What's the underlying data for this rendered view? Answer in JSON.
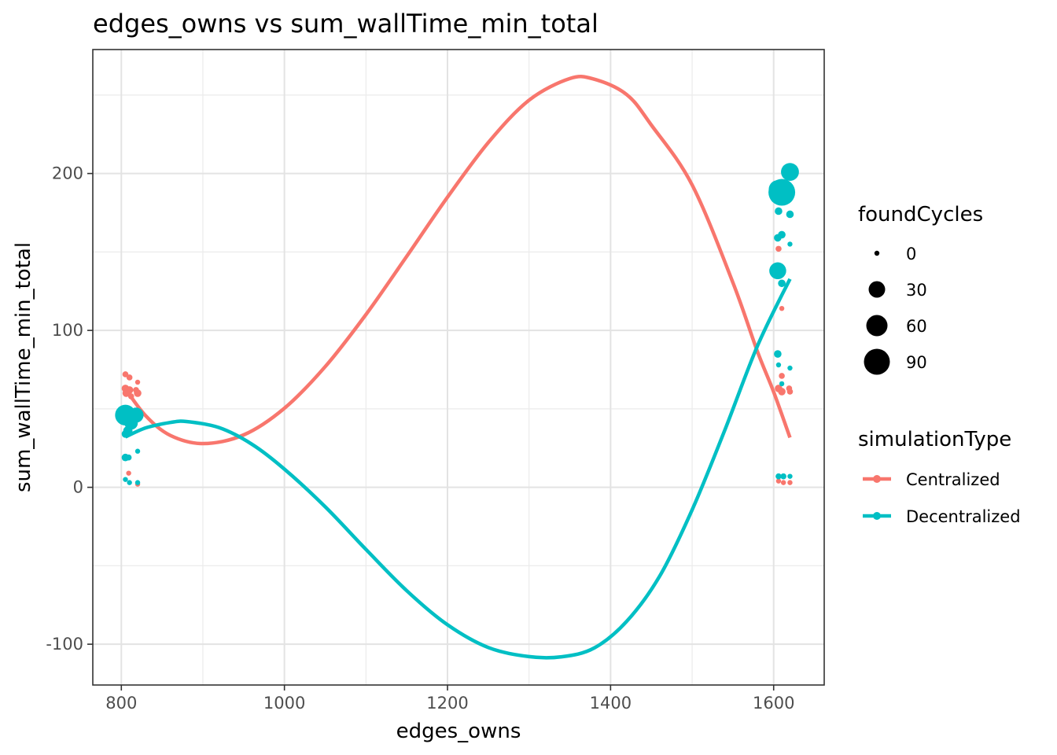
{
  "chart_data": {
    "type": "scatter",
    "title": "edges_owns  vs  sum_wallTime_min_total",
    "xlabel": "edges_owns",
    "ylabel": "sum_wallTime_min_total",
    "xlim": [
      765,
      1662
    ],
    "ylim": [
      -126,
      279
    ],
    "x_ticks": [
      800,
      1000,
      1200,
      1400,
      1600
    ],
    "y_ticks": [
      -100,
      0,
      100,
      200
    ],
    "x_minor": [
      900,
      1100,
      1300,
      1500
    ],
    "y_minor": [
      -50,
      50,
      150,
      250
    ],
    "grid": true,
    "legend_position": "right",
    "size_legend": {
      "title": "foundCycles",
      "entries": [
        {
          "label": "0",
          "value": 0
        },
        {
          "label": "30",
          "value": 30
        },
        {
          "label": "60",
          "value": 60
        },
        {
          "label": "90",
          "value": 90
        }
      ]
    },
    "series": [
      {
        "name": "Centralized",
        "color": "#F8766D",
        "points": [
          {
            "x": 805,
            "y": 72,
            "size": 5
          },
          {
            "x": 810,
            "y": 70,
            "size": 5
          },
          {
            "x": 805,
            "y": 63,
            "size": 8
          },
          {
            "x": 810,
            "y": 62,
            "size": 8
          },
          {
            "x": 806,
            "y": 60,
            "size": 8
          },
          {
            "x": 812,
            "y": 58,
            "size": 5
          },
          {
            "x": 820,
            "y": 67,
            "size": 3
          },
          {
            "x": 818,
            "y": 62,
            "size": 5
          },
          {
            "x": 820,
            "y": 60,
            "size": 8
          },
          {
            "x": 809,
            "y": 9,
            "size": 2
          },
          {
            "x": 820,
            "y": 2,
            "size": 3
          },
          {
            "x": 1606,
            "y": 152,
            "size": 5
          },
          {
            "x": 1610,
            "y": 114,
            "size": 3
          },
          {
            "x": 1610,
            "y": 71,
            "size": 5
          },
          {
            "x": 1606,
            "y": 63,
            "size": 8
          },
          {
            "x": 1610,
            "y": 61,
            "size": 8
          },
          {
            "x": 1619,
            "y": 63,
            "size": 5
          },
          {
            "x": 1620,
            "y": 61,
            "size": 5
          },
          {
            "x": 1606,
            "y": 4,
            "size": 3
          },
          {
            "x": 1612,
            "y": 3,
            "size": 3
          },
          {
            "x": 1620,
            "y": 3,
            "size": 3
          }
        ],
        "trend": [
          {
            "x": 805,
            "y": 62.7
          },
          {
            "x": 830,
            "y": 45.5
          },
          {
            "x": 860,
            "y": 33.1
          },
          {
            "x": 900,
            "y": 27.9
          },
          {
            "x": 950,
            "y": 33.4
          },
          {
            "x": 1000,
            "y": 50.4
          },
          {
            "x": 1050,
            "y": 76.9
          },
          {
            "x": 1100,
            "y": 110.1
          },
          {
            "x": 1150,
            "y": 147.2
          },
          {
            "x": 1200,
            "y": 184.9
          },
          {
            "x": 1250,
            "y": 219.7
          },
          {
            "x": 1300,
            "y": 246.7
          },
          {
            "x": 1350,
            "y": 260.5
          },
          {
            "x": 1380,
            "y": 260.1
          },
          {
            "x": 1420,
            "y": 250.2
          },
          {
            "x": 1450,
            "y": 230.9
          },
          {
            "x": 1500,
            "y": 192.8
          },
          {
            "x": 1550,
            "y": 130.5
          },
          {
            "x": 1580,
            "y": 86.7
          },
          {
            "x": 1600,
            "y": 60.8
          },
          {
            "x": 1620,
            "y": 31.7
          }
        ]
      },
      {
        "name": "Decentralized",
        "color": "#00BFC4",
        "points": [
          {
            "x": 805,
            "y": 46,
            "size": 60
          },
          {
            "x": 818,
            "y": 46,
            "size": 32
          },
          {
            "x": 812,
            "y": 41,
            "size": 25
          },
          {
            "x": 808,
            "y": 36,
            "size": 12
          },
          {
            "x": 805,
            "y": 34,
            "size": 8
          },
          {
            "x": 805,
            "y": 19,
            "size": 8
          },
          {
            "x": 809,
            "y": 19,
            "size": 5
          },
          {
            "x": 820,
            "y": 23,
            "size": 3
          },
          {
            "x": 805,
            "y": 5,
            "size": 3
          },
          {
            "x": 810,
            "y": 3,
            "size": 3
          },
          {
            "x": 820,
            "y": 3,
            "size": 3
          },
          {
            "x": 1620,
            "y": 201,
            "size": 45
          },
          {
            "x": 1610,
            "y": 188,
            "size": 100
          },
          {
            "x": 1605,
            "y": 190,
            "size": 45
          },
          {
            "x": 1606,
            "y": 176,
            "size": 8
          },
          {
            "x": 1620,
            "y": 174,
            "size": 8
          },
          {
            "x": 1610,
            "y": 161,
            "size": 8
          },
          {
            "x": 1605,
            "y": 159,
            "size": 8
          },
          {
            "x": 1620,
            "y": 155,
            "size": 3
          },
          {
            "x": 1605,
            "y": 138,
            "size": 40
          },
          {
            "x": 1610,
            "y": 130,
            "size": 8
          },
          {
            "x": 1605,
            "y": 85,
            "size": 8
          },
          {
            "x": 1606,
            "y": 78,
            "size": 3
          },
          {
            "x": 1620,
            "y": 76,
            "size": 3
          },
          {
            "x": 1610,
            "y": 66,
            "size": 3
          },
          {
            "x": 1606,
            "y": 7,
            "size": 5
          },
          {
            "x": 1612,
            "y": 7,
            "size": 5
          },
          {
            "x": 1620,
            "y": 7,
            "size": 3
          }
        ],
        "trend": [
          {
            "x": 805,
            "y": 32.1
          },
          {
            "x": 830,
            "y": 37.9
          },
          {
            "x": 860,
            "y": 41.3
          },
          {
            "x": 880,
            "y": 41.9
          },
          {
            "x": 920,
            "y": 38.0
          },
          {
            "x": 960,
            "y": 27.5
          },
          {
            "x": 1000,
            "y": 11.6
          },
          {
            "x": 1050,
            "y": -12.4
          },
          {
            "x": 1100,
            "y": -39.6
          },
          {
            "x": 1150,
            "y": -65.9
          },
          {
            "x": 1200,
            "y": -87.6
          },
          {
            "x": 1250,
            "y": -102.1
          },
          {
            "x": 1300,
            "y": -107.9
          },
          {
            "x": 1340,
            "y": -108.0
          },
          {
            "x": 1380,
            "y": -102.4
          },
          {
            "x": 1420,
            "y": -85.3
          },
          {
            "x": 1460,
            "y": -56.8
          },
          {
            "x": 1500,
            "y": -14.4
          },
          {
            "x": 1540,
            "y": 36.3
          },
          {
            "x": 1580,
            "y": 90.0
          },
          {
            "x": 1620,
            "y": 132.8
          }
        ]
      }
    ]
  }
}
